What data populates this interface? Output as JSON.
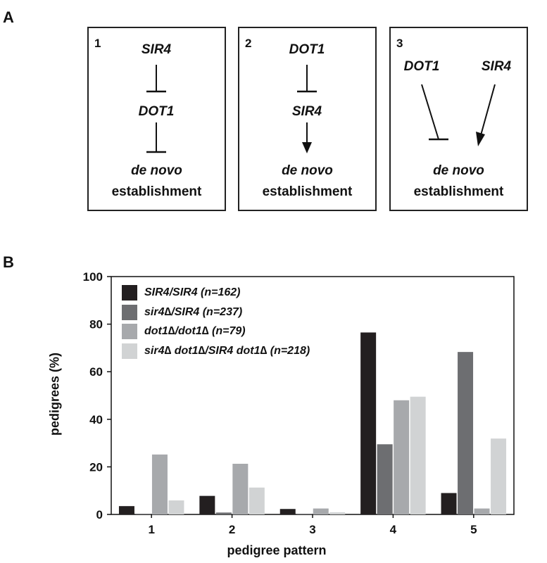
{
  "panel_a": {
    "letter": "A",
    "models": [
      {
        "number": "1",
        "top_gene": "SIR4",
        "mid_gene": "DOT1",
        "outcome_italic": "de novo",
        "outcome_text": "establishment"
      },
      {
        "number": "2",
        "top_gene": "DOT1",
        "mid_gene": "SIR4",
        "outcome_italic": "de novo",
        "outcome_text": "establishment"
      },
      {
        "number": "3",
        "left_gene": "DOT1",
        "right_gene": "SIR4",
        "outcome_italic": "de novo",
        "outcome_text": "establishment"
      }
    ]
  },
  "panel_b": {
    "letter": "B"
  },
  "chart_data": {
    "type": "bar",
    "title": "",
    "xlabel": "pedigree pattern",
    "ylabel": "pedigrees (%)",
    "ylim": [
      0,
      100
    ],
    "yticks": [
      "0",
      "20",
      "40",
      "60",
      "80",
      "100"
    ],
    "categories": [
      "1",
      "2",
      "3",
      "4",
      "5"
    ],
    "legend_position": "top-left",
    "series": [
      {
        "name": "SIR4/SIR4 (n=162)",
        "color": "#231f20",
        "values": [
          3.5,
          7.8,
          2.3,
          76.5,
          9.0
        ]
      },
      {
        "name": "sir4∆/SIR4 (n=237)",
        "color": "#6d6e71",
        "values": [
          0.3,
          0.8,
          0.3,
          29.5,
          68.3
        ]
      },
      {
        "name": "dot1∆/dot1∆ (n=79)",
        "color": "#a7a9ac",
        "values": [
          25.2,
          21.3,
          2.5,
          48.0,
          2.5
        ]
      },
      {
        "name": "sir4∆ dot1∆/SIR4 dot1∆ (n=218)",
        "color": "#d1d3d4",
        "values": [
          5.9,
          11.3,
          0.9,
          49.5,
          31.9
        ]
      }
    ]
  }
}
